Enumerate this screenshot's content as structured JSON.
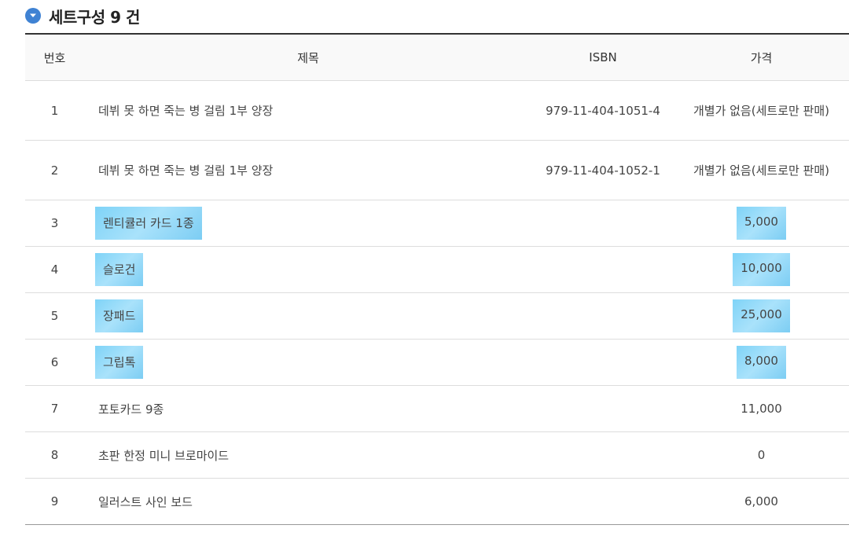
{
  "header": {
    "title": "세트구성 9 건",
    "icon": "chevron-down-circle-icon",
    "icon_color": "#3f82d3"
  },
  "table": {
    "columns": [
      "번호",
      "제목",
      "ISBN",
      "가격"
    ],
    "rows": [
      {
        "no": "1",
        "title": "데뷔 못 하면 죽는 병 걸림 1부 양장",
        "isbn": "979-11-404-1051-4",
        "price": "개별가 없음(세트로만 판매)",
        "highlight": false
      },
      {
        "no": "2",
        "title": "데뷔 못 하면 죽는 병 걸림 1부 양장",
        "isbn": "979-11-404-1052-1",
        "price": "개별가 없음(세트로만 판매)",
        "highlight": false
      },
      {
        "no": "3",
        "title": "렌티큘러 카드 1종",
        "isbn": "",
        "price": "5,000",
        "highlight": true
      },
      {
        "no": "4",
        "title": "슬로건",
        "isbn": "",
        "price": "10,000",
        "highlight": true
      },
      {
        "no": "5",
        "title": "장패드",
        "isbn": "",
        "price": "25,000",
        "highlight": true
      },
      {
        "no": "6",
        "title": "그립톡",
        "isbn": "",
        "price": "8,000",
        "highlight": true
      },
      {
        "no": "7",
        "title": "포토카드 9종",
        "isbn": "",
        "price": "11,000",
        "highlight": false
      },
      {
        "no": "8",
        "title": "초판 한정 미니 브로마이드",
        "isbn": "",
        "price": "0",
        "highlight": false
      },
      {
        "no": "9",
        "title": "일러스트 사인 보드",
        "isbn": "",
        "price": "6,000",
        "highlight": false
      }
    ]
  }
}
